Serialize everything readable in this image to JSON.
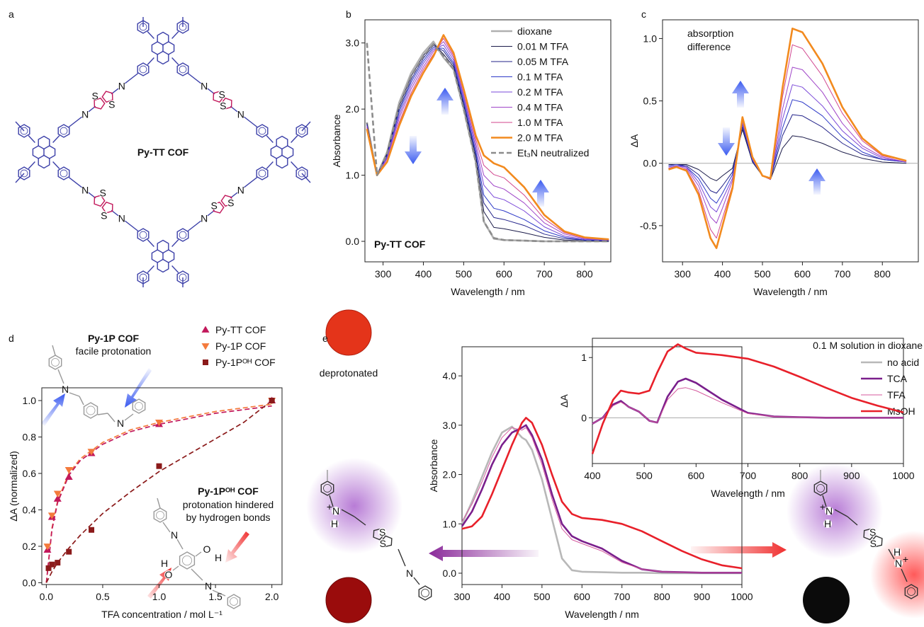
{
  "figure": {
    "panel_labels": [
      "a",
      "b",
      "c",
      "d",
      "e"
    ],
    "a_title": "Py-TT COF",
    "photo_label": "deprotonated",
    "atom_labels": {
      "N": "N",
      "S": "S",
      "O": "O",
      "H": "H",
      "plus": "+"
    }
  },
  "chart_data": [
    {
      "type": "line",
      "xlabel": "Wavelength / nm",
      "ylabel": "Absorbance",
      "xlim": [
        255,
        865
      ],
      "ylim": [
        -0.31,
        3.35
      ],
      "xticks": [
        300,
        400,
        500,
        600,
        700,
        800
      ],
      "yticks": [
        {
          "value": 0,
          "label": "0.0"
        },
        {
          "value": 1,
          "label": "1.0"
        },
        {
          "value": 2,
          "label": "2.0"
        },
        {
          "value": 3,
          "label": "3.0"
        }
      ],
      "legend": "upper right",
      "annotations": [
        "Py-TT COF"
      ],
      "x": [
        260,
        285,
        310,
        340,
        370,
        400,
        425,
        450,
        475,
        500,
        530,
        550,
        575,
        600,
        650,
        700,
        750,
        800,
        860
      ],
      "series": [
        {
          "name": "dioxane",
          "color": "#b0b0b0",
          "style": "thick",
          "values": [
            1.8,
            1.0,
            1.35,
            2.1,
            2.55,
            2.85,
            3.02,
            2.78,
            2.6,
            2.0,
            1.2,
            0.3,
            0.04,
            0.02,
            0.01,
            0,
            0,
            0,
            0
          ]
        },
        {
          "name": "0.01 M TFA",
          "color": "#1c1c4a",
          "values": [
            1.79,
            1.0,
            1.33,
            2.05,
            2.5,
            2.81,
            2.99,
            2.83,
            2.64,
            2.05,
            1.26,
            0.45,
            0.21,
            0.19,
            0.13,
            0.06,
            0.02,
            0.01,
            0.0
          ]
        },
        {
          "name": "0.05 M TFA",
          "color": "#23238a",
          "values": [
            1.77,
            1.0,
            1.31,
            2.0,
            2.45,
            2.77,
            2.96,
            2.88,
            2.67,
            2.08,
            1.31,
            0.58,
            0.36,
            0.33,
            0.24,
            0.11,
            0.04,
            0.02,
            0.01
          ]
        },
        {
          "name": "0.1 M TFA",
          "color": "#2e3ac8",
          "values": [
            1.76,
            1.0,
            1.29,
            1.96,
            2.41,
            2.73,
            2.93,
            2.92,
            2.7,
            2.12,
            1.36,
            0.7,
            0.5,
            0.46,
            0.33,
            0.16,
            0.06,
            0.02,
            0.01
          ]
        },
        {
          "name": "0.2 M TFA",
          "color": "#7a48d8",
          "values": [
            1.75,
            1.0,
            1.27,
            1.91,
            2.36,
            2.69,
            2.9,
            2.97,
            2.74,
            2.17,
            1.42,
            0.85,
            0.67,
            0.63,
            0.46,
            0.22,
            0.08,
            0.03,
            0.02
          ]
        },
        {
          "name": "0.4 M TFA",
          "color": "#a046c8",
          "values": [
            1.73,
            1.0,
            1.25,
            1.86,
            2.31,
            2.64,
            2.87,
            3.02,
            2.78,
            2.21,
            1.48,
            1.0,
            0.84,
            0.79,
            0.58,
            0.28,
            0.11,
            0.04,
            0.02
          ]
        },
        {
          "name": "1.0 M TFA",
          "color": "#d0458e",
          "values": [
            1.72,
            1.0,
            1.22,
            1.8,
            2.25,
            2.6,
            2.83,
            3.07,
            2.81,
            2.26,
            1.54,
            1.15,
            1.01,
            0.96,
            0.7,
            0.34,
            0.13,
            0.05,
            0.03
          ]
        },
        {
          "name": "2.0 M TFA",
          "color": "#f28a1e",
          "style": "thick",
          "values": [
            1.7,
            1.0,
            1.2,
            1.75,
            2.2,
            2.55,
            2.8,
            3.12,
            2.85,
            2.3,
            1.6,
            1.3,
            1.18,
            1.12,
            0.82,
            0.4,
            0.15,
            0.06,
            0.03
          ]
        },
        {
          "name": "Et₃N neutralized",
          "color": "#8c8c8c",
          "style": "thick-dashed",
          "values": [
            3.0,
            1.0,
            1.33,
            2.05,
            2.5,
            2.8,
            2.98,
            2.8,
            2.6,
            2.0,
            1.2,
            0.3,
            0.05,
            0.02,
            0.01,
            0,
            0,
            0,
            0
          ]
        }
      ]
    },
    {
      "type": "line",
      "xlabel": "Wavelength / nm",
      "ylabel": "ΔA",
      "xlim": [
        250,
        890
      ],
      "ylim": [
        -0.79,
        1.15
      ],
      "xticks": [
        300,
        400,
        500,
        600,
        700,
        800
      ],
      "yticks": [
        -0.5,
        {
          "value": 0,
          "label": "0.0"
        },
        0.5,
        {
          "value": 1,
          "label": "1.0"
        }
      ],
      "baseline": true,
      "annotations": [
        "absorption",
        "difference"
      ],
      "x": [
        265,
        285,
        310,
        340,
        370,
        385,
        400,
        425,
        450,
        475,
        500,
        520,
        550,
        575,
        600,
        650,
        700,
        750,
        800,
        860
      ],
      "series": [
        {
          "color": "#1c1c4a",
          "values": [
            -0.01,
            -0.01,
            -0.01,
            -0.05,
            -0.12,
            -0.14,
            -0.1,
            -0.04,
            0.27,
            0.01,
            -0.1,
            -0.13,
            0.12,
            0.22,
            0.21,
            0.16,
            0.09,
            0.04,
            0.01,
            0.0
          ]
        },
        {
          "color": "#23238a",
          "values": [
            -0.02,
            -0.01,
            -0.02,
            -0.09,
            -0.22,
            -0.24,
            -0.18,
            -0.07,
            0.29,
            0.02,
            -0.1,
            -0.13,
            0.22,
            0.39,
            0.38,
            0.29,
            0.16,
            0.07,
            0.03,
            0.01
          ]
        },
        {
          "color": "#2e3ac8",
          "values": [
            -0.02,
            -0.01,
            -0.03,
            -0.12,
            -0.28,
            -0.32,
            -0.24,
            -0.09,
            0.31,
            0.02,
            -0.1,
            -0.13,
            0.28,
            0.51,
            0.49,
            0.38,
            0.21,
            0.09,
            0.03,
            0.01
          ]
        },
        {
          "color": "#7a48d8",
          "values": [
            -0.03,
            -0.02,
            -0.03,
            -0.15,
            -0.35,
            -0.39,
            -0.29,
            -0.12,
            0.32,
            0.03,
            -0.1,
            -0.13,
            0.35,
            0.63,
            0.61,
            0.46,
            0.26,
            0.12,
            0.04,
            0.01
          ]
        },
        {
          "color": "#a046c8",
          "values": [
            -0.04,
            -0.02,
            -0.04,
            -0.18,
            -0.43,
            -0.48,
            -0.36,
            -0.14,
            0.34,
            0.04,
            -0.1,
            -0.13,
            0.43,
            0.77,
            0.75,
            0.57,
            0.32,
            0.14,
            0.05,
            0.01
          ]
        },
        {
          "color": "#d0458e",
          "values": [
            -0.04,
            -0.03,
            -0.05,
            -0.22,
            -0.53,
            -0.6,
            -0.44,
            -0.18,
            0.36,
            0.04,
            -0.1,
            -0.13,
            0.53,
            0.95,
            0.92,
            0.7,
            0.4,
            0.18,
            0.06,
            0.02
          ]
        },
        {
          "color": "#f28a1e",
          "style": "thick",
          "values": [
            -0.05,
            -0.03,
            -0.06,
            -0.25,
            -0.6,
            -0.68,
            -0.5,
            -0.2,
            0.37,
            0.05,
            -0.1,
            -0.12,
            0.6,
            1.08,
            1.05,
            0.8,
            0.45,
            0.2,
            0.07,
            0.02
          ]
        }
      ]
    },
    {
      "type": "scatter",
      "xlabel": "TFA concentration / mol L⁻¹",
      "ylabel": "ΔA (normalized)",
      "xlim": [
        -0.04,
        2.09
      ],
      "ylim": [
        -0.01,
        1.07
      ],
      "xticks": [
        {
          "value": 0,
          "label": "0.0"
        },
        0.5,
        {
          "value": 1,
          "label": "1.0"
        },
        1.5,
        {
          "value": 2,
          "label": "2.0"
        }
      ],
      "yticks": [
        {
          "value": 0,
          "label": "0.0"
        },
        0.2,
        0.4,
        0.6,
        0.8,
        {
          "value": 1,
          "label": "1.0"
        }
      ],
      "legend": "upper right",
      "annotations": [
        "Py-1P COF",
        "facile protonation",
        "Py-1Pᴼᴴ COF",
        "protonation hindered",
        "by hydrogen bonds"
      ],
      "series": [
        {
          "color": "#f47a3c",
          "style": "dashed",
          "x": [
            0,
            0.05,
            0.1,
            0.2,
            0.3,
            0.5,
            0.75,
            1.0,
            1.25,
            1.5,
            1.75,
            2.0
          ],
          "values": [
            0,
            0.3,
            0.45,
            0.6,
            0.68,
            0.77,
            0.84,
            0.88,
            0.91,
            0.94,
            0.96,
            0.98
          ]
        },
        {
          "color": "#c2185b",
          "style": "dashed",
          "x": [
            0,
            0.05,
            0.1,
            0.2,
            0.3,
            0.5,
            0.75,
            1.0,
            1.25,
            1.5,
            1.75,
            2.0
          ],
          "values": [
            0,
            0.29,
            0.44,
            0.59,
            0.67,
            0.76,
            0.83,
            0.87,
            0.9,
            0.93,
            0.95,
            0.97
          ]
        },
        {
          "color": "#8b1a1a",
          "style": "dashed",
          "x": [
            0,
            0.05,
            0.1,
            0.2,
            0.3,
            0.5,
            0.75,
            1.0,
            1.25,
            1.5,
            1.75,
            2.0
          ],
          "values": [
            0,
            0.06,
            0.11,
            0.19,
            0.26,
            0.38,
            0.5,
            0.61,
            0.7,
            0.79,
            0.88,
            1.0
          ]
        },
        {
          "name": "Py-TT COF",
          "color": "#c2185b",
          "marker": "triangle-up",
          "x": [
            0.01,
            0.05,
            0.1,
            0.2,
            0.4,
            1.0,
            2.0
          ],
          "values": [
            0.18,
            0.36,
            0.46,
            0.58,
            0.71,
            0.87,
            1.0
          ]
        },
        {
          "name": "Py-1P COF",
          "color": "#f47a3c",
          "marker": "triangle-down",
          "x": [
            0.01,
            0.05,
            0.1,
            0.2,
            0.4,
            1.0,
            2.0
          ],
          "values": [
            0.2,
            0.37,
            0.49,
            0.62,
            0.72,
            0.88,
            1.0
          ]
        },
        {
          "name": "Py-1Pᴼᴴ COF",
          "color": "#8b1a1a",
          "marker": "square",
          "x": [
            0.02,
            0.05,
            0.1,
            0.2,
            0.4,
            1.0,
            2.0
          ],
          "values": [
            0.08,
            0.1,
            0.11,
            0.17,
            0.29,
            0.64,
            1.0
          ]
        }
      ]
    },
    {
      "type": "line",
      "xlabel": "Wavelength / nm",
      "ylabel": "Absorbance",
      "xlim": [
        300,
        1000
      ],
      "ylim": [
        -0.23,
        4.59
      ],
      "xticks": [
        300,
        400,
        500,
        600,
        700,
        800,
        900,
        1000
      ],
      "yticks": [
        {
          "value": 0,
          "label": "0.0"
        },
        {
          "value": 1,
          "label": "1.0"
        },
        {
          "value": 2,
          "label": "2.0"
        },
        {
          "value": 3,
          "label": "3.0"
        },
        {
          "value": 4,
          "label": "4.0"
        }
      ],
      "legend": "upper right",
      "legend_title": "0.1 M solution in dioxane",
      "x": [
        300,
        325,
        350,
        375,
        400,
        425,
        450,
        460,
        475,
        500,
        525,
        550,
        575,
        600,
        650,
        700,
        750,
        800,
        850,
        900,
        950,
        1000
      ],
      "series": [
        {
          "name": "no acid",
          "color": "#b8b8b8",
          "style": "thick",
          "values": [
            1.0,
            1.45,
            1.95,
            2.45,
            2.85,
            2.97,
            2.75,
            2.7,
            2.5,
            1.9,
            1.1,
            0.3,
            0.06,
            0.03,
            0.02,
            0.01,
            0.01,
            0,
            0,
            0,
            0,
            0
          ]
        },
        {
          "name": "TCA",
          "color": "#7a1f8c",
          "style": "thick",
          "values": [
            0.95,
            1.25,
            1.7,
            2.2,
            2.6,
            2.85,
            2.95,
            3.0,
            2.8,
            2.3,
            1.6,
            1.0,
            0.75,
            0.65,
            0.5,
            0.25,
            0.08,
            0.03,
            0.02,
            0.01,
            0.01,
            0.01
          ]
        },
        {
          "name": "TFA",
          "color": "#d45a9e",
          "values": [
            1.05,
            1.4,
            1.85,
            2.35,
            2.75,
            2.95,
            2.9,
            2.95,
            2.75,
            2.2,
            1.5,
            0.9,
            0.68,
            0.6,
            0.45,
            0.22,
            0.08,
            0.03,
            0.02,
            0.01,
            0.01,
            0.01
          ]
        },
        {
          "name": "MsOH",
          "color": "#e8202a",
          "style": "thick",
          "values": [
            0.9,
            0.95,
            1.15,
            1.6,
            2.1,
            2.6,
            3.05,
            3.15,
            3.05,
            2.6,
            2.0,
            1.45,
            1.2,
            1.12,
            1.08,
            1.0,
            0.85,
            0.65,
            0.45,
            0.28,
            0.16,
            0.1
          ]
        }
      ]
    },
    {
      "type": "line",
      "xlabel": "Wavelength / nm",
      "ylabel": "ΔA",
      "xlim": [
        400,
        1000
      ],
      "ylim": [
        -0.76,
        1.32
      ],
      "xticks": [
        400,
        500,
        600,
        700,
        800,
        900,
        1000
      ],
      "yticks": [
        0,
        1
      ],
      "baseline": true,
      "x": [
        400,
        420,
        440,
        455,
        470,
        490,
        510,
        525,
        545,
        565,
        580,
        600,
        650,
        700,
        750,
        800,
        850,
        900,
        950,
        1000
      ],
      "series": [
        {
          "color": "#7a1f8c",
          "style": "thick",
          "values": [
            -0.1,
            0.0,
            0.22,
            0.28,
            0.18,
            0.1,
            -0.05,
            -0.08,
            0.35,
            0.6,
            0.65,
            0.58,
            0.3,
            0.08,
            0.02,
            0.01,
            0.0,
            0.0,
            0.0,
            0.0
          ]
        },
        {
          "color": "#d45a9e",
          "values": [
            -0.1,
            0.0,
            0.2,
            0.26,
            0.18,
            0.1,
            -0.05,
            -0.08,
            0.3,
            0.48,
            0.5,
            0.45,
            0.25,
            0.07,
            0.02,
            0.01,
            0,
            0,
            0,
            0
          ]
        },
        {
          "color": "#e8202a",
          "style": "thick",
          "values": [
            -0.6,
            -0.1,
            0.3,
            0.45,
            0.42,
            0.4,
            0.45,
            0.75,
            1.1,
            1.22,
            1.15,
            1.08,
            1.04,
            0.98,
            0.85,
            0.68,
            0.5,
            0.33,
            0.2,
            0.09
          ]
        }
      ]
    }
  ]
}
